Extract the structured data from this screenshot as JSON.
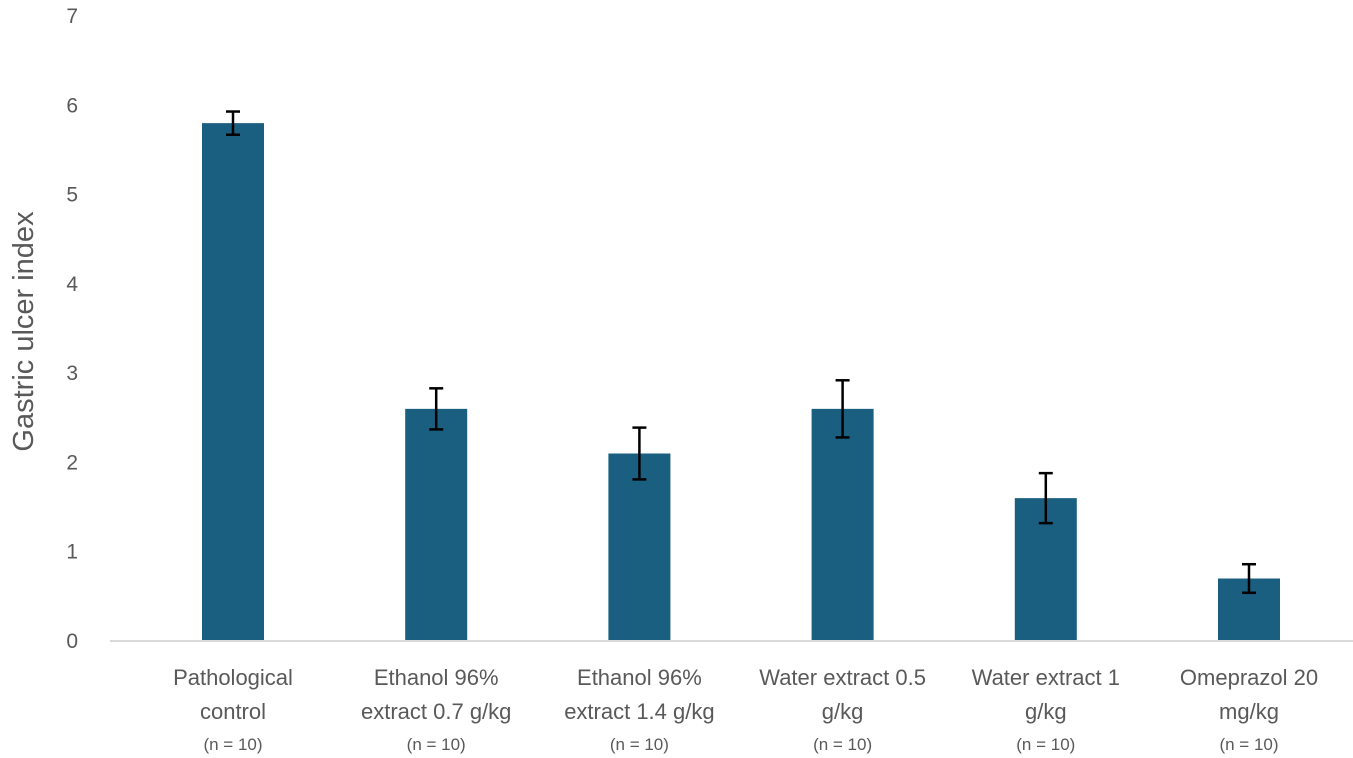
{
  "chart_data": {
    "type": "bar",
    "title": "",
    "ylabel": "Gastric ulcer index",
    "xlabel": "",
    "ylim": [
      0,
      7
    ],
    "yticks": [
      0,
      1,
      2,
      3,
      4,
      5,
      6,
      7
    ],
    "grid": false,
    "legend": "none",
    "categories": [
      {
        "lines": [
          "Pathological",
          "control"
        ],
        "n": "(n = 10)"
      },
      {
        "lines": [
          "Ethanol 96%",
          "extract 0.7 g/kg"
        ],
        "n": "(n = 10)"
      },
      {
        "lines": [
          "Ethanol 96%",
          "extract 1.4 g/kg"
        ],
        "n": "(n = 10)"
      },
      {
        "lines": [
          "Water extract 0.5",
          "g/kg"
        ],
        "n": "(n = 10)"
      },
      {
        "lines": [
          "Water extract 1",
          "g/kg"
        ],
        "n": "(n = 10)"
      },
      {
        "lines": [
          "Omeprazol 20",
          "mg/kg"
        ],
        "n": "(n = 10)"
      }
    ],
    "values": [
      5.8,
      2.6,
      2.1,
      2.6,
      1.6,
      0.7
    ],
    "error": [
      0.13,
      0.23,
      0.29,
      0.32,
      0.28,
      0.16
    ],
    "colors": {
      "bar": "#1a5e80",
      "axis": "#d9d9d9",
      "text": "#595959",
      "error": "#000000"
    }
  }
}
